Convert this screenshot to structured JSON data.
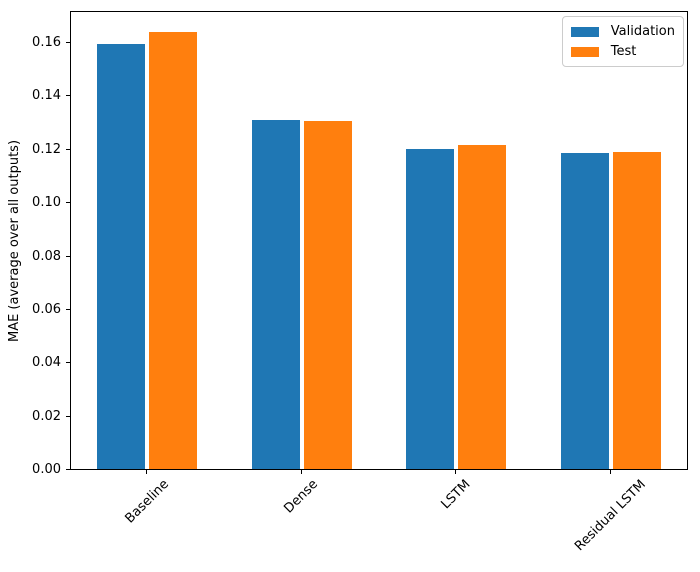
{
  "chart_data": {
    "type": "bar",
    "title": "",
    "xlabel": "",
    "ylabel": "MAE (average over all outputs)",
    "categories": [
      "Baseline",
      "Dense",
      "LSTM",
      "Residual LSTM"
    ],
    "series": [
      {
        "name": "Validation",
        "color": "#1f77b4",
        "values": [
          0.1595,
          0.131,
          0.1201,
          0.1185
        ]
      },
      {
        "name": "Test",
        "color": "#ff7f0e",
        "values": [
          0.1643,
          0.1308,
          0.1216,
          0.1192
        ]
      }
    ],
    "ylim": [
      0,
      0.172
    ],
    "yticks": [
      0.0,
      0.02,
      0.04,
      0.06,
      0.08,
      0.1,
      0.12,
      0.14,
      0.16
    ],
    "ytick_labels": [
      "0.00",
      "0.02",
      "0.04",
      "0.06",
      "0.08",
      "0.10",
      "0.12",
      "0.14",
      "0.16"
    ],
    "xtick_rotation_deg": 45,
    "grid": false,
    "legend_position": "upper right",
    "background_color": "#ffffff",
    "spine_color": "#000000"
  }
}
